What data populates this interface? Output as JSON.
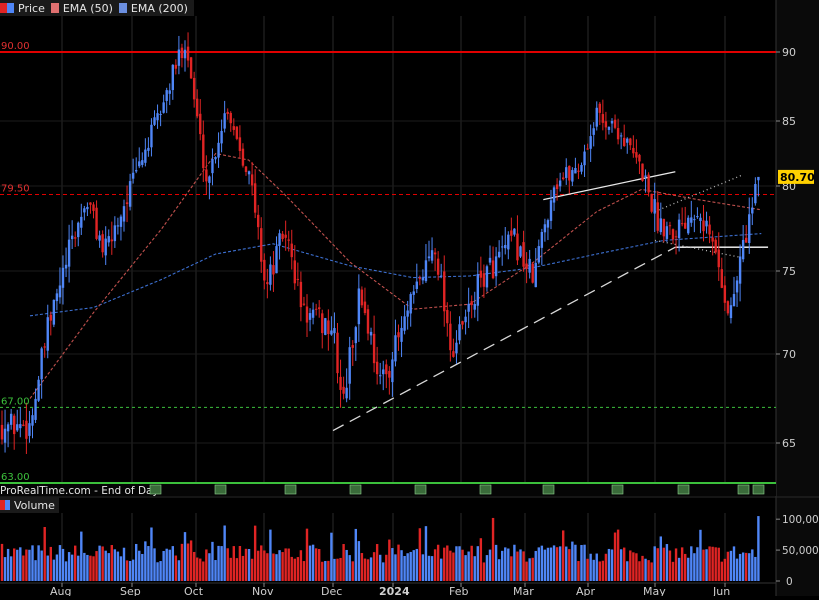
{
  "legend": {
    "price_label": "Price",
    "ema50_label": "EMA (50)",
    "ema200_label": "EMA (200)"
  },
  "volume_legend": {
    "label": "Volume"
  },
  "footer": {
    "source": "ProRealTime.com - End of Day"
  },
  "colors": {
    "background": "#000000",
    "up": "#4f86f7",
    "down": "#e02424",
    "ema50": "#c0504d",
    "ema200": "#3c6fd0",
    "level90": "#e00000",
    "level79": "#e00000",
    "level67": "#3cc03c",
    "badge_bg": "#ffd000",
    "grid": "#2a2a2a",
    "axis_text": "#cfcfcf"
  },
  "chart_data": [
    {
      "type": "candlestick",
      "title": "",
      "y_ticks": [
        65,
        70,
        75,
        80,
        85,
        90
      ],
      "ylim": [
        63.0,
        92.2
      ],
      "x_ticks": [
        "Aug",
        "Sep",
        "Oct",
        "Nov",
        "Dec",
        "2024",
        "Feb",
        "Mar",
        "Apr",
        "May",
        "Jun"
      ],
      "last_price": "80.70",
      "level_labels": [
        {
          "text": "90.00",
          "value": 90.0
        },
        {
          "text": "79.50",
          "value": 79.5
        },
        {
          "text": "67.00",
          "value": 67.0
        },
        {
          "text": "63.00",
          "value": 63.0
        }
      ],
      "anchors": [
        {
          "month": "Jul-16",
          "close": 66.0
        },
        {
          "month": "Jul-25",
          "close": 71.5
        },
        {
          "month": "Aug-05",
          "close": 76.5
        },
        {
          "month": "Aug-12",
          "close": 79.2
        },
        {
          "month": "Aug-20",
          "close": 76.0
        },
        {
          "month": "Sep-01",
          "close": 80.2
        },
        {
          "month": "Sep-15",
          "close": 86.0
        },
        {
          "month": "Sep-26",
          "close": 91.0
        },
        {
          "month": "Oct-06",
          "close": 80.2
        },
        {
          "month": "Oct-15",
          "close": 86.2
        },
        {
          "month": "Oct-25",
          "close": 81.0
        },
        {
          "month": "Nov-02",
          "close": 74.0
        },
        {
          "month": "Nov-10",
          "close": 77.5
        },
        {
          "month": "Nov-18",
          "close": 72.5
        },
        {
          "month": "Dec-01",
          "close": 71.5
        },
        {
          "month": "Dec-06",
          "close": 67.0
        },
        {
          "month": "Dec-15",
          "close": 73.8
        },
        {
          "month": "Dec-26",
          "close": 68.2
        },
        {
          "month": "Jan-08",
          "close": 72.5
        },
        {
          "month": "Jan-20",
          "close": 76.8
        },
        {
          "month": "Jan-28",
          "close": 70.0
        },
        {
          "month": "Feb-10",
          "close": 74.5
        },
        {
          "month": "Feb-25",
          "close": 76.8
        },
        {
          "month": "Mar-05",
          "close": 74.5
        },
        {
          "month": "Mar-15",
          "close": 80.2
        },
        {
          "month": "Mar-28",
          "close": 81.5
        },
        {
          "month": "Apr-05",
          "close": 85.5
        },
        {
          "month": "Apr-15",
          "close": 84.2
        },
        {
          "month": "Apr-25",
          "close": 81.2
        },
        {
          "month": "May-02",
          "close": 78.0
        },
        {
          "month": "May-10",
          "close": 77.5
        },
        {
          "month": "May-20",
          "close": 79.0
        },
        {
          "month": "May-28",
          "close": 76.0
        },
        {
          "month": "Jun-03",
          "close": 72.2
        },
        {
          "month": "Jun-10",
          "close": 77.2
        },
        {
          "month": "Jun-17",
          "close": 80.7
        }
      ],
      "ema50_points": [
        {
          "month": "Jul-16",
          "value": 67.5
        },
        {
          "month": "Aug-15",
          "value": 72.5
        },
        {
          "month": "Sep-15",
          "value": 77.5
        },
        {
          "month": "Oct-10",
          "value": 82.5
        },
        {
          "month": "Oct-25",
          "value": 82.0
        },
        {
          "month": "Nov-10",
          "value": 79.5
        },
        {
          "month": "Dec-10",
          "value": 75.5
        },
        {
          "month": "Jan-10",
          "value": 72.7
        },
        {
          "month": "Feb-05",
          "value": 73.0
        },
        {
          "month": "Mar-05",
          "value": 75.5
        },
        {
          "month": "Apr-05",
          "value": 78.5
        },
        {
          "month": "Apr-25",
          "value": 79.8
        },
        {
          "month": "May-20",
          "value": 79.2
        },
        {
          "month": "Jun-17",
          "value": 78.6
        }
      ],
      "ema200_points": [
        {
          "month": "Jul-16",
          "value": 72.3
        },
        {
          "month": "Aug-15",
          "value": 72.8
        },
        {
          "month": "Sep-15",
          "value": 74.5
        },
        {
          "month": "Oct-10",
          "value": 76.0
        },
        {
          "month": "Nov-05",
          "value": 76.6
        },
        {
          "month": "Dec-10",
          "value": 75.3
        },
        {
          "month": "Jan-10",
          "value": 74.6
        },
        {
          "month": "Feb-05",
          "value": 74.7
        },
        {
          "month": "Mar-05",
          "value": 75.2
        },
        {
          "month": "Apr-05",
          "value": 76.0
        },
        {
          "month": "May-05",
          "value": 76.8
        },
        {
          "month": "Jun-17",
          "value": 77.2
        }
      ],
      "trendlines": [
        {
          "style": "dash",
          "from": {
            "month": "Dec-01",
            "value": 65.7
          },
          "to": {
            "month": "May-10",
            "value": 76.4
          }
        },
        {
          "style": "solid",
          "from": {
            "month": "Mar-10",
            "value": 79.2
          },
          "to": {
            "month": "May-10",
            "value": 81.1
          }
        },
        {
          "style": "solid",
          "from": {
            "month": "May-10",
            "value": 76.4
          },
          "to": {
            "month": "Jun-20",
            "value": 76.4
          }
        },
        {
          "style": "dot",
          "from": {
            "month": "May-01",
            "value": 78.5
          },
          "to": {
            "month": "Jun-08",
            "value": 80.8
          }
        },
        {
          "style": "dot",
          "from": {
            "month": "May-01",
            "value": 76.8
          },
          "to": {
            "month": "Jun-08",
            "value": 75.8
          }
        }
      ]
    },
    {
      "type": "bar",
      "title": "Volume",
      "y_ticks": [
        "100,000",
        "50,000",
        "0"
      ],
      "ylim": [
        0,
        110000
      ]
    }
  ]
}
